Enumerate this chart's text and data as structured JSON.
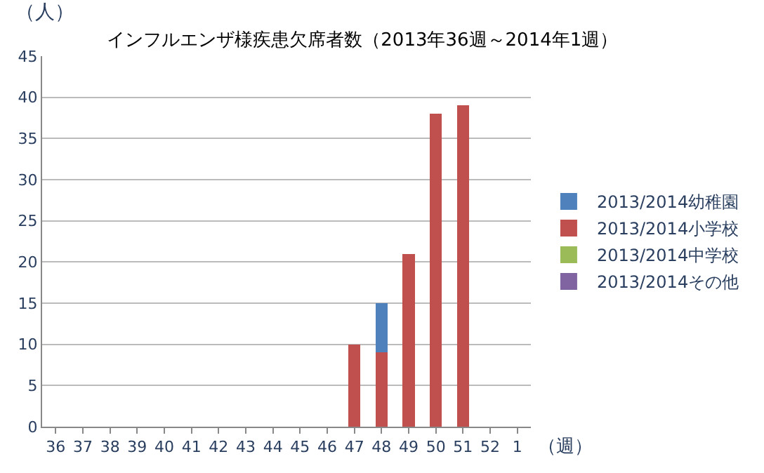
{
  "chart_data": {
    "type": "bar",
    "stacked": true,
    "title": "インフルエンザ様疾患欠席者数（2013年36週～2014年1週）",
    "ylabel": "（人）",
    "xlabel": "（週）",
    "categories": [
      "36",
      "37",
      "38",
      "39",
      "40",
      "41",
      "42",
      "43",
      "44",
      "45",
      "46",
      "47",
      "48",
      "49",
      "50",
      "51",
      "52",
      "1"
    ],
    "series": [
      {
        "name": "2013/2014その他",
        "color": "#8064a2",
        "values": [
          0,
          0,
          0,
          0,
          0,
          0,
          0,
          0,
          0,
          0,
          0,
          0,
          0,
          0,
          0,
          0,
          0,
          0
        ]
      },
      {
        "name": "2013/2014中学校",
        "color": "#9bbb59",
        "values": [
          0,
          0,
          0,
          0,
          0,
          0,
          0,
          0,
          0,
          0,
          0,
          0,
          0,
          0,
          0,
          0,
          0,
          0
        ]
      },
      {
        "name": "2013/2014小学校",
        "color": "#c0504d",
        "values": [
          0,
          0,
          0,
          0,
          0,
          0,
          0,
          0,
          0,
          0,
          0,
          10,
          9,
          21,
          38,
          39,
          0,
          0
        ]
      },
      {
        "name": "2013/2014幼稚園",
        "color": "#4f81bd",
        "values": [
          0,
          0,
          0,
          0,
          0,
          0,
          0,
          0,
          0,
          0,
          0,
          0,
          6,
          0,
          0,
          0,
          0,
          0
        ]
      }
    ],
    "ylim": [
      0,
      45
    ],
    "yticks": [
      0,
      5,
      10,
      15,
      20,
      25,
      30,
      35,
      40,
      45
    ],
    "grid": "y",
    "legend": "right"
  }
}
